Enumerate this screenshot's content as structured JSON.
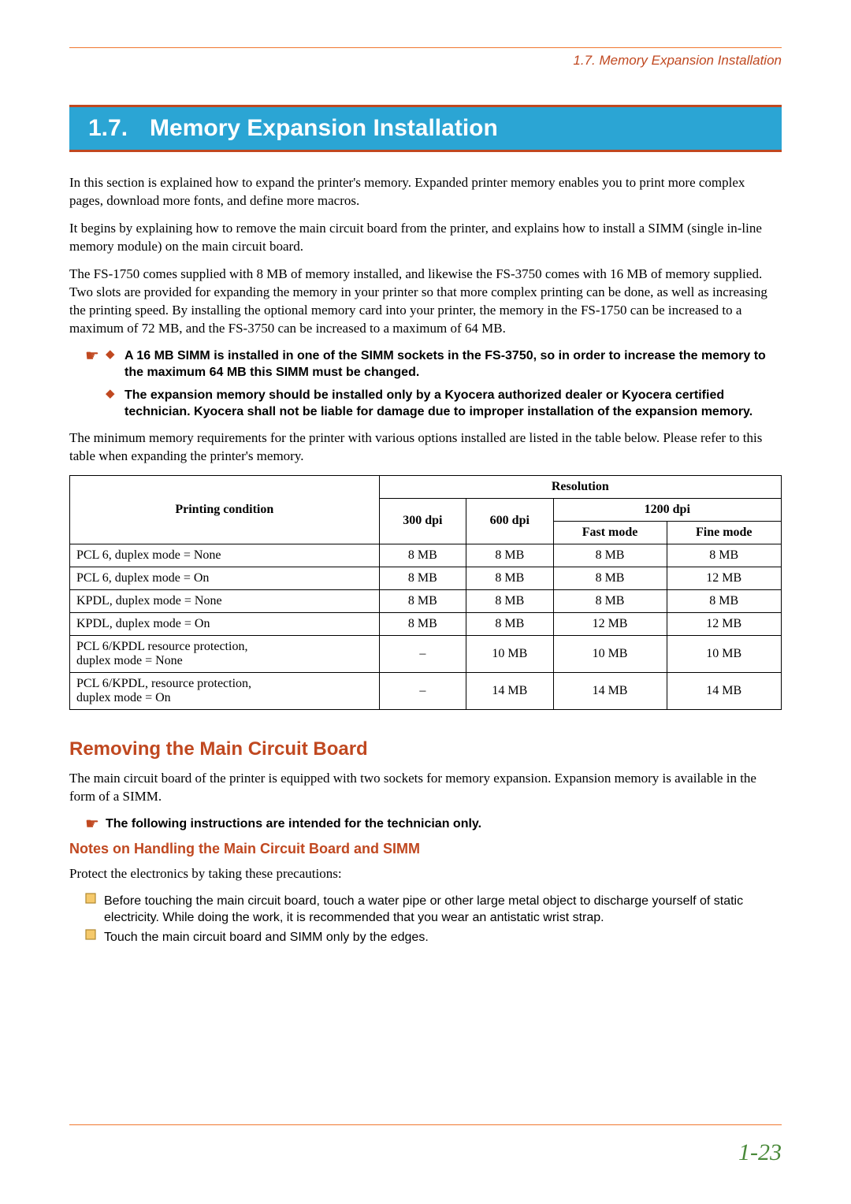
{
  "header": {
    "breadcrumb": "1.7. Memory Expansion Installation"
  },
  "heading": {
    "num": "1.7.",
    "title": "Memory Expansion Installation"
  },
  "p1": "In this section is explained how to expand the printer's memory. Expanded printer memory enables you to print more complex pages, download more fonts, and define more macros.",
  "p2": "It begins by explaining how to remove the main circuit board from the printer, and explains how to install a SIMM (single in-line memory module) on the main circuit board.",
  "p3": "The FS-1750 comes supplied with 8 MB of memory installed, and likewise the FS-3750 comes with 16 MB of memory supplied. Two slots are provided for expanding the memory in your printer so that more complex printing can be done, as well as increasing the printing speed. By installing the optional memory card into your printer, the memory in the FS-1750 can be increased to a maximum of 72 MB, and the FS-3750 can be increased to a maximum of 64 MB.",
  "notes": [
    "A 16 MB SIMM is installed in one of the SIMM sockets in the FS-3750, so in order to increase the memory to the maximum 64 MB this SIMM must be changed.",
    "The expansion memory should be installed only by a Kyocera authorized dealer or Kyocera certified technician. Kyocera shall not be liable for damage due to improper installation of the expansion memory."
  ],
  "p4": "The minimum memory requirements for the printer with various options installed are listed in the table below. Please refer to this table when expanding the printer's memory.",
  "table": {
    "col_condition": "Printing condition",
    "col_resolution": "Resolution",
    "col_300": "300 dpi",
    "col_600": "600 dpi",
    "col_1200": "1200 dpi",
    "col_fast": "Fast mode",
    "col_fine": "Fine mode",
    "rows": [
      {
        "c": "PCL 6, duplex mode = None",
        "v": [
          "8 MB",
          "8 MB",
          "8 MB",
          "8 MB"
        ]
      },
      {
        "c": "PCL 6, duplex mode = On",
        "v": [
          "8 MB",
          "8 MB",
          "8 MB",
          "12 MB"
        ]
      },
      {
        "c": "KPDL, duplex mode = None",
        "v": [
          "8 MB",
          "8 MB",
          "8 MB",
          "8 MB"
        ]
      },
      {
        "c": "KPDL, duplex mode = On",
        "v": [
          "8 MB",
          "8 MB",
          "12 MB",
          "12 MB"
        ]
      },
      {
        "c": "PCL 6/KPDL resource protection,\nduplex mode = None",
        "v": [
          "–",
          "10 MB",
          "10 MB",
          "10 MB"
        ]
      },
      {
        "c": "PCL 6/KPDL, resource protection,\nduplex mode = On",
        "v": [
          "–",
          "14 MB",
          "14 MB",
          "14 MB"
        ]
      }
    ]
  },
  "sub1": "Removing the Main Circuit Board",
  "p5": "The main circuit board of the printer is equipped with two sockets for memory expansion. Expansion memory is available in the form of a SIMM.",
  "note2": "The following instructions are intended for the technician only.",
  "sub2": "Notes on Handling the Main Circuit Board and SIMM",
  "p6": "Protect the electronics by taking these precautions:",
  "checks": [
    "Before touching the main circuit board, touch a water pipe or other large metal object to discharge yourself of static electricity. While doing the work, it is recommended that you wear an antistatic wrist strap.",
    "Touch the main circuit board and SIMM only by the edges."
  ],
  "pagenum": "1-23",
  "colors": {
    "brand_blue": "#2ba5d4",
    "brand_red": "#c04820",
    "rule_orange": "#f07830",
    "page_green": "#4a8a3a"
  }
}
